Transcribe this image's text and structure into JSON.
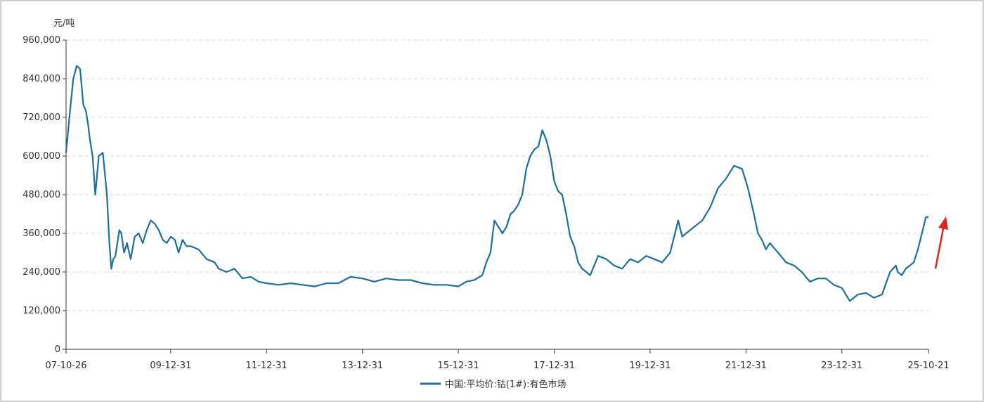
{
  "chart_data": {
    "type": "line",
    "title": "",
    "xlabel": "",
    "ylabel": "元/吨",
    "ylim": [
      0,
      960000
    ],
    "yticks": [
      0,
      120000,
      240000,
      360000,
      480000,
      600000,
      720000,
      840000,
      960000
    ],
    "ytick_labels": [
      "0",
      "120,000",
      "240,000",
      "360,000",
      "480,000",
      "600,000",
      "720,000",
      "840,000",
      "960,000"
    ],
    "xticks": [
      "07-10-26",
      "09-12-31",
      "11-12-31",
      "13-12-31",
      "15-12-31",
      "17-12-31",
      "19-12-31",
      "21-12-31",
      "23-12-31",
      "25-10-21"
    ],
    "xlim": [
      "2007-10-26",
      "2025-10-21"
    ],
    "grid": "horizontal dashed",
    "legend_position": "bottom-center",
    "series": [
      {
        "name": "中国:平均价:钴(1#):有色市场",
        "color": "#1f6f9a",
        "x": [
          "2007-10-26",
          "2007-11-20",
          "2007-12-20",
          "2008-01-15",
          "2008-02-10",
          "2008-03-05",
          "2008-03-25",
          "2008-04-10",
          "2008-04-25",
          "2008-05-15",
          "2008-06-05",
          "2008-07-01",
          "2008-08-01",
          "2008-09-01",
          "2008-09-20",
          "2008-10-05",
          "2008-10-20",
          "2008-11-05",
          "2008-11-20",
          "2008-12-05",
          "2008-12-20",
          "2009-01-10",
          "2009-02-01",
          "2009-03-01",
          "2009-04-01",
          "2009-05-01",
          "2009-06-01",
          "2009-07-01",
          "2009-08-01",
          "2009-09-01",
          "2009-10-01",
          "2009-11-01",
          "2009-12-01",
          "2010-01-01",
          "2010-02-01",
          "2010-03-01",
          "2010-04-01",
          "2010-05-01",
          "2010-06-01",
          "2010-08-01",
          "2010-10-01",
          "2010-12-01",
          "2011-01-01",
          "2011-03-01",
          "2011-05-01",
          "2011-07-01",
          "2011-09-01",
          "2011-11-01",
          "2012-01-01",
          "2012-04-01",
          "2012-07-01",
          "2012-10-01",
          "2013-01-01",
          "2013-04-01",
          "2013-07-01",
          "2013-10-01",
          "2014-01-01",
          "2014-04-01",
          "2014-07-01",
          "2014-10-01",
          "2015-01-01",
          "2015-04-01",
          "2015-07-01",
          "2015-10-01",
          "2016-01-01",
          "2016-03-01",
          "2016-05-01",
          "2016-07-01",
          "2016-08-01",
          "2016-09-01",
          "2016-10-01",
          "2016-11-01",
          "2016-12-01",
          "2017-01-01",
          "2017-02-01",
          "2017-03-01",
          "2017-04-01",
          "2017-05-01",
          "2017-06-01",
          "2017-07-01",
          "2017-08-01",
          "2017-09-01",
          "2017-10-01",
          "2017-11-01",
          "2017-12-01",
          "2018-01-01",
          "2018-02-01",
          "2018-03-01",
          "2018-04-01",
          "2018-05-01",
          "2018-06-01",
          "2018-07-01",
          "2018-08-01",
          "2018-09-01",
          "2018-10-01",
          "2018-12-01",
          "2019-02-01",
          "2019-04-01",
          "2019-06-01",
          "2019-08-01",
          "2019-10-01",
          "2019-12-01",
          "2020-02-01",
          "2020-04-01",
          "2020-06-01",
          "2020-08-01",
          "2020-09-01",
          "2020-10-01",
          "2020-12-01",
          "2021-02-01",
          "2021-04-01",
          "2021-06-01",
          "2021-08-01",
          "2021-10-01",
          "2021-12-01",
          "2022-01-15",
          "2022-03-01",
          "2022-04-01",
          "2022-05-01",
          "2022-06-01",
          "2022-07-01",
          "2022-09-01",
          "2022-11-01",
          "2023-01-01",
          "2023-03-01",
          "2023-05-01",
          "2023-07-01",
          "2023-09-01",
          "2023-11-01",
          "2024-01-01",
          "2024-03-01",
          "2024-05-01",
          "2024-07-01",
          "2024-09-01",
          "2024-11-01",
          "2025-01-01",
          "2025-02-15",
          "2025-03-01",
          "2025-04-01",
          "2025-05-01",
          "2025-06-01",
          "2025-07-01",
          "2025-08-01",
          "2025-09-01",
          "2025-10-01",
          "2025-10-21"
        ],
        "values": [
          610000,
          720000,
          840000,
          880000,
          870000,
          760000,
          740000,
          700000,
          650000,
          600000,
          480000,
          600000,
          610000,
          480000,
          330000,
          250000,
          280000,
          290000,
          330000,
          370000,
          360000,
          300000,
          330000,
          280000,
          350000,
          360000,
          330000,
          370000,
          400000,
          390000,
          370000,
          340000,
          330000,
          350000,
          340000,
          300000,
          340000,
          320000,
          320000,
          310000,
          280000,
          270000,
          250000,
          240000,
          250000,
          220000,
          225000,
          210000,
          205000,
          200000,
          205000,
          200000,
          195000,
          205000,
          205000,
          225000,
          220000,
          210000,
          220000,
          215000,
          215000,
          205000,
          200000,
          200000,
          195000,
          210000,
          215000,
          230000,
          270000,
          300000,
          400000,
          380000,
          360000,
          380000,
          420000,
          430000,
          450000,
          480000,
          560000,
          600000,
          620000,
          630000,
          680000,
          650000,
          600000,
          520000,
          490000,
          480000,
          420000,
          350000,
          320000,
          270000,
          250000,
          240000,
          230000,
          290000,
          280000,
          260000,
          250000,
          280000,
          270000,
          290000,
          280000,
          270000,
          300000,
          400000,
          350000,
          360000,
          380000,
          400000,
          440000,
          500000,
          530000,
          570000,
          560000,
          500000,
          420000,
          360000,
          340000,
          310000,
          330000,
          300000,
          270000,
          260000,
          240000,
          210000,
          220000,
          220000,
          200000,
          190000,
          150000,
          170000,
          175000,
          160000,
          170000,
          240000,
          260000,
          240000,
          230000,
          250000,
          260000,
          270000,
          310000,
          360000,
          410000,
          410000
        ]
      }
    ]
  },
  "legend": {
    "label": "中国:平均价:钴(1#):有色市场"
  },
  "annotation": {
    "icon": "red-up-arrow-icon",
    "color": "#e0231d"
  }
}
